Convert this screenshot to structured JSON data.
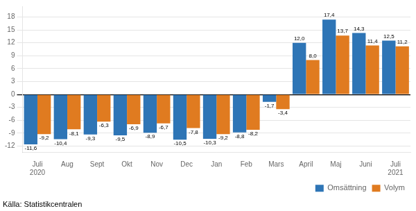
{
  "chart_data": {
    "type": "bar",
    "categories": [
      "Juli\n2020",
      "Aug",
      "Sept",
      "Okt",
      "Nov",
      "Dec",
      "Jan",
      "Feb",
      "Mars",
      "April",
      "Maj",
      "Juni",
      "Juli\n2021"
    ],
    "series": [
      {
        "name": "Omsättning",
        "color": "#2e75b6",
        "values": [
          -11.6,
          -10.4,
          -9.3,
          -9.5,
          -8.9,
          -10.5,
          -10.3,
          -8.8,
          -1.7,
          12.0,
          17.4,
          14.3,
          12.5
        ],
        "value_labels": [
          "-11,6",
          "-10,4",
          "-9,3",
          "-9,5",
          "-8,9",
          "-10,5",
          "-10,3",
          "-8,8",
          "-1,7",
          "12,0",
          "17,4",
          "14,3",
          "12,5"
        ]
      },
      {
        "name": "Volym",
        "color": "#e07b20",
        "values": [
          -9.2,
          -8.1,
          -6.3,
          -6.9,
          -6.7,
          -7.8,
          -9.2,
          -8.2,
          -3.4,
          8.0,
          13.7,
          11.4,
          11.2
        ],
        "value_labels": [
          "-9,2",
          "-8,1",
          "-6,3",
          "-6,9",
          "-6,7",
          "-7,8",
          "-9,2",
          "-8,2",
          "-3,4",
          "8,0",
          "13,7",
          "11,4",
          "11,2"
        ]
      }
    ],
    "ylim": [
      -13.5,
      20.5
    ],
    "yticks": [
      -12,
      -9,
      -6,
      -3,
      0,
      3,
      6,
      9,
      12,
      15,
      18
    ],
    "grid": true,
    "legend": "lower right",
    "data_labels": true,
    "annotations": [
      "Källa: Statistikcentralen"
    ]
  }
}
